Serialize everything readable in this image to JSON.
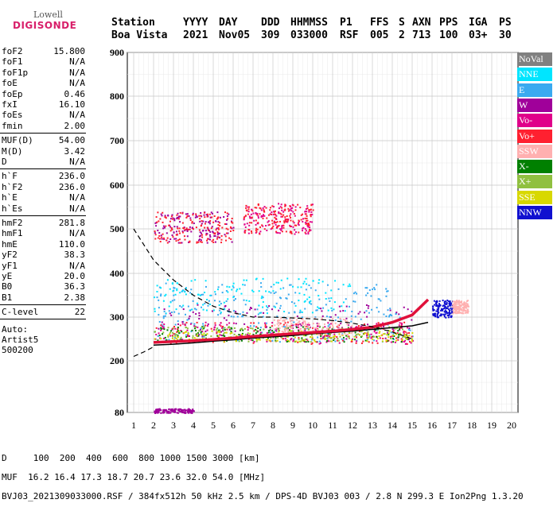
{
  "logo": {
    "line1": "Lowell",
    "line2": "DIGISONDE"
  },
  "header": {
    "cols": [
      "Station",
      "YYYY",
      "DAY",
      "DDD",
      "HHMMSS",
      "P1",
      "FFS",
      "S",
      "AXN",
      "PPS",
      "IGA",
      "PS"
    ],
    "vals": [
      "Boa Vista",
      "2021",
      "Nov05",
      "309",
      "033000",
      "RSF",
      "005",
      "2",
      "713",
      "100",
      "03+",
      "30"
    ]
  },
  "params": {
    "group1": [
      {
        "k": "foF2",
        "v": "15.800"
      },
      {
        "k": "foF1",
        "v": "N/A"
      },
      {
        "k": "foF1p",
        "v": "N/A"
      },
      {
        "k": "foE",
        "v": "N/A"
      },
      {
        "k": "foEp",
        "v": "0.46"
      },
      {
        "k": "fxI",
        "v": "16.10"
      },
      {
        "k": "foEs",
        "v": "N/A"
      },
      {
        "k": "fmin",
        "v": "2.00"
      }
    ],
    "group2": [
      {
        "k": "MUF(D)",
        "v": "54.00"
      },
      {
        "k": "M(D)",
        "v": "3.42"
      },
      {
        "k": "D",
        "v": "N/A"
      }
    ],
    "group3": [
      {
        "k": "h`F",
        "v": "236.0"
      },
      {
        "k": "h`F2",
        "v": "236.0"
      },
      {
        "k": "h`E",
        "v": "N/A"
      },
      {
        "k": "h`Es",
        "v": "N/A"
      }
    ],
    "group4": [
      {
        "k": "hmF2",
        "v": "281.8"
      },
      {
        "k": "hmF1",
        "v": "N/A"
      },
      {
        "k": "hmE",
        "v": "110.0"
      },
      {
        "k": "yF2",
        "v": "38.3"
      },
      {
        "k": "yF1",
        "v": "N/A"
      },
      {
        "k": "yE",
        "v": "20.0"
      },
      {
        "k": "B0",
        "v": "36.3"
      },
      {
        "k": "B1",
        "v": "2.38"
      }
    ],
    "group5": [
      {
        "k": "C-level",
        "v": "22"
      }
    ],
    "auto": [
      "Auto:",
      "Artist5",
      "500200"
    ]
  },
  "legend": [
    {
      "label": "NoVal",
      "bg": "#808080",
      "fg": "#ffffff"
    },
    {
      "label": "NNE",
      "bg": "#00e5ff",
      "fg": "#ffffff"
    },
    {
      "label": "E",
      "bg": "#3aaaf0",
      "fg": "#ffffff"
    },
    {
      "label": "W",
      "bg": "#a0009a",
      "fg": "#ffffff"
    },
    {
      "label": "Vo-",
      "bg": "#e0008a",
      "fg": "#ffffff"
    },
    {
      "label": "Vo+",
      "bg": "#ff2030",
      "fg": "#ffffff"
    },
    {
      "label": "SSW",
      "bg": "#ffb0b0",
      "fg": "#ffffff"
    },
    {
      "label": "X-",
      "bg": "#008000",
      "fg": "#ffffff"
    },
    {
      "label": "X+",
      "bg": "#90c040",
      "fg": "#ffffff"
    },
    {
      "label": "SSE",
      "bg": "#d8d800",
      "fg": "#ffffff"
    },
    {
      "label": "NNW",
      "bg": "#1010d0",
      "fg": "#ffffff"
    }
  ],
  "chart_data": {
    "type": "scatter",
    "xlabel": "",
    "ylabel": "",
    "xlim": [
      1,
      20
    ],
    "ylim": [
      80,
      900
    ],
    "x_ticks": [
      1,
      2,
      3,
      4,
      5,
      6,
      7,
      8,
      9,
      10,
      11,
      12,
      13,
      14,
      15,
      16,
      17,
      18,
      19,
      20
    ],
    "y_ticks": [
      80,
      200,
      300,
      400,
      500,
      600,
      700,
      800,
      900
    ],
    "grid": true,
    "series": [
      {
        "name": "profile",
        "style": "solid",
        "x": [
          2,
          3,
          4,
          5,
          6,
          7,
          8,
          9,
          10,
          11,
          12,
          13,
          14,
          15,
          15.8
        ],
        "y": [
          236,
          238,
          241,
          245,
          248,
          252,
          255,
          258,
          262,
          265,
          268,
          272,
          276,
          280,
          288
        ]
      },
      {
        "name": "trace",
        "style": "bold-red",
        "x": [
          2,
          3,
          4,
          5,
          6,
          7,
          8,
          9,
          10,
          11,
          12,
          13,
          14,
          15,
          15.8
        ],
        "y": [
          242,
          244,
          246,
          249,
          252,
          256,
          259,
          262,
          265,
          268,
          272,
          277,
          288,
          305,
          340
        ]
      },
      {
        "name": "dashed",
        "style": "dashed",
        "x": [
          1,
          1.5,
          2,
          3,
          4,
          5,
          6,
          7,
          8,
          9,
          10,
          11,
          12,
          13,
          14,
          15
        ],
        "y": [
          500,
          465,
          430,
          385,
          350,
          325,
          310,
          300,
          300,
          298,
          296,
          292,
          286,
          278,
          266,
          250
        ]
      },
      {
        "name": "dashed-low",
        "style": "dashed",
        "x": [
          1,
          1.5,
          2
        ],
        "y": [
          210,
          220,
          232
        ]
      }
    ],
    "clusters": [
      {
        "x": [
          2,
          6
        ],
        "y": [
          470,
          540
        ],
        "color": "#a0009a"
      },
      {
        "x": [
          2,
          6
        ],
        "y": [
          470,
          540
        ],
        "color": "#ff2030"
      },
      {
        "x": [
          6.5,
          10
        ],
        "y": [
          490,
          560
        ],
        "color": "#e0008a"
      },
      {
        "x": [
          6.5,
          10
        ],
        "y": [
          490,
          560
        ],
        "color": "#ff2030"
      },
      {
        "x": [
          2,
          15
        ],
        "y": [
          245,
          320
        ],
        "color": "#3aaaf0"
      },
      {
        "x": [
          2,
          15
        ],
        "y": [
          250,
          330
        ],
        "color": "#a0009a"
      },
      {
        "x": [
          2,
          14
        ],
        "y": [
          300,
          380
        ],
        "color": "#3aaaf0"
      },
      {
        "x": [
          2,
          12
        ],
        "y": [
          310,
          390
        ],
        "color": "#00e5ff"
      },
      {
        "x": [
          2,
          15
        ],
        "y": [
          240,
          290
        ],
        "color": "#ff2030"
      },
      {
        "x": [
          2,
          15
        ],
        "y": [
          240,
          290
        ],
        "color": "#e0008a"
      },
      {
        "x": [
          2,
          15
        ],
        "y": [
          245,
          280
        ],
        "color": "#008000"
      },
      {
        "x": [
          2,
          15
        ],
        "y": [
          245,
          280
        ],
        "color": "#90c040"
      },
      {
        "x": [
          2,
          15
        ],
        "y": [
          245,
          270
        ],
        "color": "#d8d800"
      },
      {
        "x": [
          8,
          12
        ],
        "y": [
          260,
          300
        ],
        "color": "#ffb0b0"
      },
      {
        "x": [
          16,
          17
        ],
        "y": [
          300,
          340
        ],
        "color": "#1010d0"
      },
      {
        "x": [
          17,
          17.8
        ],
        "y": [
          310,
          340
        ],
        "color": "#ffb0b0"
      },
      {
        "x": [
          2,
          4
        ],
        "y": [
          80,
          90
        ],
        "color": "#a0009a"
      }
    ]
  },
  "footer": {
    "line1": "D     100  200  400  600  800 1000 1500 3000 [km]",
    "line2": "MUF  16.2 16.4 17.3 18.7 20.7 23.6 32.0 54.0 [MHz]",
    "line3": "BVJ03_2021309033000.RSF / 384fx512h 50 kHz 2.5 km / DPS-4D BVJ03 003 / 2.8 N 299.3 E Ion2Png 1.3.20"
  }
}
